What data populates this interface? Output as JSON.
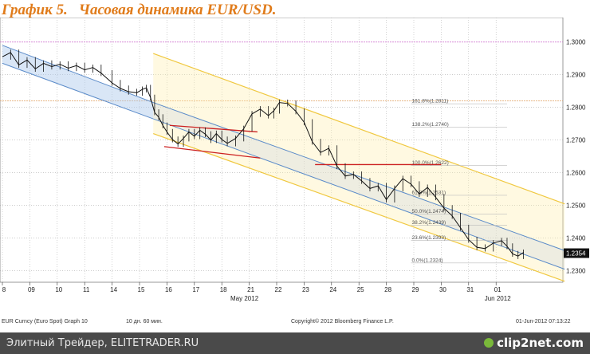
{
  "title_num": "График 5.",
  "title_text": "Часовая динамика EUR/USD.",
  "footer": {
    "left": "Элитный Трейдер, ELITETRADER.RU",
    "brand": "clip2net.com"
  },
  "info": {
    "ticker": "EUR Curncy (Euro Spot) Graph 10",
    "period": "10 дн. 60 мин.",
    "copyright": "Copyright© 2012 Bloomberg Finance L.P.",
    "date": "01-Jun-2012 07:13:22"
  },
  "chart_data": {
    "type": "line",
    "x_ticks": [
      "8",
      "09",
      "10",
      "11",
      "14",
      "15",
      "16",
      "17",
      "18",
      "21",
      "22",
      "23",
      "24",
      "25",
      "28",
      "29",
      "30",
      "31",
      "01"
    ],
    "month_labels": [
      "May 2012",
      "Jun 2012"
    ],
    "y_ticks": [
      "1.3000",
      "1.2900",
      "1.2800",
      "1.2700",
      "1.2600",
      "1.2500",
      "1.2400",
      "1.2300"
    ],
    "ylim": [
      1.2265,
      1.3075
    ],
    "last_price": "1.2354",
    "reference_lines": [
      {
        "level": 1.3,
        "color": "#cc66cc"
      },
      {
        "level": 1.282,
        "color": "#e0a060"
      }
    ],
    "fib_levels": [
      {
        "label": "161.8%(1.2811)",
        "value": 1.2811
      },
      {
        "label": "138.2%(1.2740)",
        "value": 1.274
      },
      {
        "label": "100.0%(1.2622)",
        "value": 1.2622
      },
      {
        "label": "61.8%(1.2531)",
        "value": 1.2531
      },
      {
        "label": "50.0%(1.2474)",
        "value": 1.2474
      },
      {
        "label": "38.2%(1.2439)",
        "value": 1.2439
      },
      {
        "label": "23.6%(1.2393)",
        "value": 1.2393
      },
      {
        "label": "0.0%(1.2324)",
        "value": 1.2324
      }
    ],
    "price": [
      [
        0,
        1.2955
      ],
      [
        0.3,
        1.2968
      ],
      [
        0.6,
        1.293
      ],
      [
        0.9,
        1.2945
      ],
      [
        1.2,
        1.2918
      ],
      [
        1.5,
        1.2935
      ],
      [
        1.8,
        1.2925
      ],
      [
        2.1,
        1.2932
      ],
      [
        2.4,
        1.292
      ],
      [
        2.7,
        1.2928
      ],
      [
        3,
        1.2915
      ],
      [
        3.3,
        1.2922
      ],
      [
        3.6,
        1.2905
      ],
      [
        4,
        1.2875
      ],
      [
        4.3,
        1.2858
      ],
      [
        4.6,
        1.2848
      ],
      [
        4.9,
        1.2845
      ],
      [
        5.1,
        1.2855
      ],
      [
        5.25,
        1.286
      ],
      [
        5.4,
        1.283
      ],
      [
        5.55,
        1.2785
      ],
      [
        5.7,
        1.277
      ],
      [
        5.85,
        1.2745
      ],
      [
        6.0,
        1.2725
      ],
      [
        6.2,
        1.2702
      ],
      [
        6.4,
        1.2688
      ],
      [
        6.6,
        1.2705
      ],
      [
        6.8,
        1.2725
      ],
      [
        7.0,
        1.2712
      ],
      [
        7.2,
        1.273
      ],
      [
        7.4,
        1.2718
      ],
      [
        7.6,
        1.27
      ],
      [
        7.8,
        1.272
      ],
      [
        8.0,
        1.2702
      ],
      [
        8.2,
        1.269
      ],
      [
        8.5,
        1.2705
      ],
      [
        8.8,
        1.2735
      ],
      [
        9.1,
        1.278
      ],
      [
        9.4,
        1.2795
      ],
      [
        9.7,
        1.2775
      ],
      [
        9.9,
        1.279
      ],
      [
        10.1,
        1.2815
      ],
      [
        10.4,
        1.2812
      ],
      [
        10.7,
        1.2788
      ],
      [
        11.0,
        1.2755
      ],
      [
        11.3,
        1.2695
      ],
      [
        11.6,
        1.2662
      ],
      [
        11.9,
        1.2675
      ],
      [
        12.2,
        1.262
      ],
      [
        12.5,
        1.259
      ],
      [
        12.8,
        1.2595
      ],
      [
        13.1,
        1.2575
      ],
      [
        13.4,
        1.2552
      ],
      [
        13.7,
        1.256
      ],
      [
        14.0,
        1.2518
      ],
      [
        14.3,
        1.2552
      ],
      [
        14.6,
        1.2582
      ],
      [
        14.9,
        1.2565
      ],
      [
        15.2,
        1.2535
      ],
      [
        15.5,
        1.2555
      ],
      [
        15.8,
        1.2525
      ],
      [
        16.1,
        1.2492
      ],
      [
        16.4,
        1.2468
      ],
      [
        16.7,
        1.2432
      ],
      [
        17.0,
        1.2395
      ],
      [
        17.3,
        1.2372
      ],
      [
        17.6,
        1.2368
      ],
      [
        17.9,
        1.2385
      ],
      [
        18.2,
        1.2392
      ],
      [
        18.4,
        1.2375
      ],
      [
        18.6,
        1.2352
      ],
      [
        18.8,
        1.2345
      ],
      [
        19.0,
        1.2356
      ]
    ]
  }
}
